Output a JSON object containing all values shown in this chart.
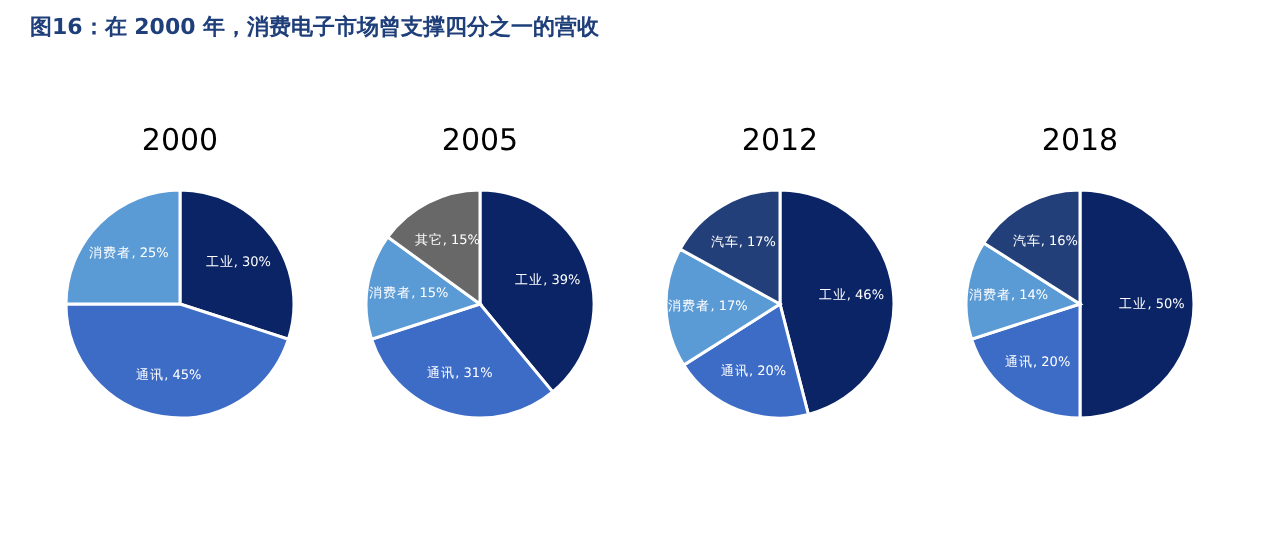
{
  "chart_data": [
    {
      "type": "pie",
      "title": "2000",
      "annotations": [
        "图16：在 2000 年，消费电子市场曾支撑四分之一的营收"
      ],
      "categories": [
        "工业",
        "通讯",
        "消费者"
      ],
      "values": [
        30,
        45,
        25
      ],
      "colors": [
        "#0b2466",
        "#3d6cc6",
        "#5b9bd5"
      ],
      "value_labels": [
        "30%",
        "45%",
        "25%"
      ]
    },
    {
      "type": "pie",
      "title": "2005",
      "categories": [
        "工业",
        "通讯",
        "消费者",
        "其它"
      ],
      "values": [
        39,
        31,
        15,
        15
      ],
      "colors": [
        "#0b2466",
        "#3d6cc6",
        "#5b9bd5",
        "#686868"
      ],
      "value_labels": [
        "39%",
        "31%",
        "15%",
        "15%"
      ]
    },
    {
      "type": "pie",
      "title": "2012",
      "categories": [
        "工业",
        "通讯",
        "消费者",
        "汽车"
      ],
      "values": [
        46,
        20,
        17,
        17
      ],
      "colors": [
        "#0b2466",
        "#3d6cc6",
        "#5b9bd5",
        "#223f7a"
      ],
      "value_labels": [
        "46%",
        "20%",
        "17%",
        "17%"
      ]
    },
    {
      "type": "pie",
      "title": "2018",
      "categories": [
        "工业",
        "通讯",
        "消费者",
        "汽车"
      ],
      "values": [
        50,
        20,
        14,
        16
      ],
      "colors": [
        "#0b2466",
        "#3d6cc6",
        "#5b9bd5",
        "#223f7a"
      ],
      "value_labels": [
        "50%",
        "20%",
        "14%",
        "16%"
      ]
    }
  ]
}
